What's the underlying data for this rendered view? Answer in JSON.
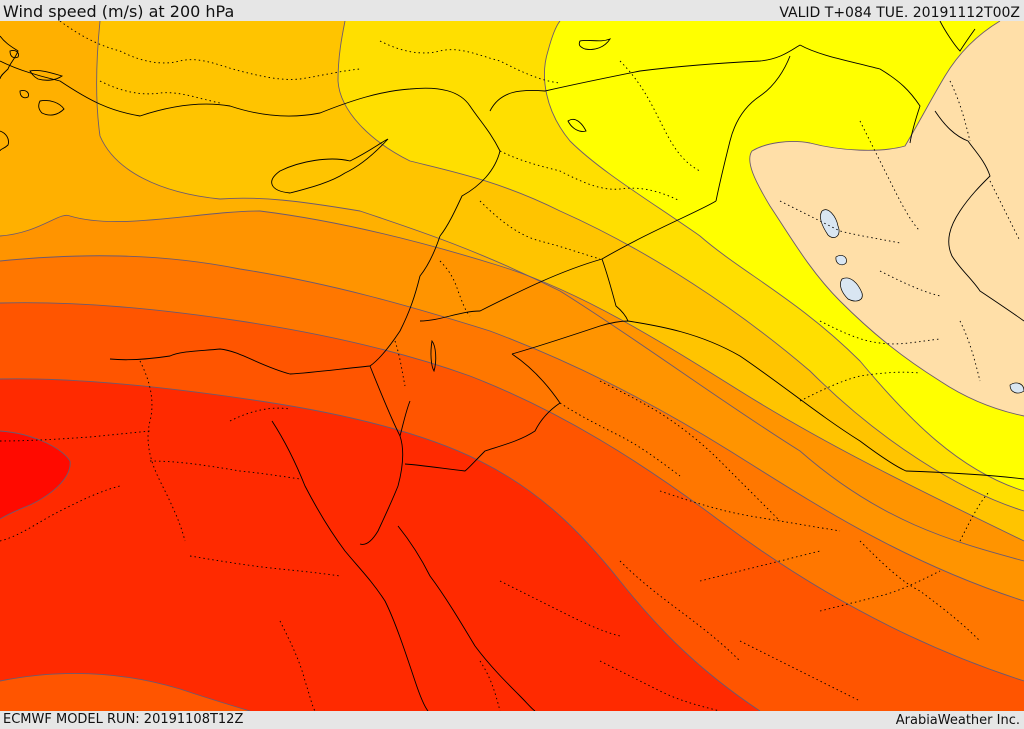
{
  "header": {
    "title": "Wind speed (m/s) at 200 hPa",
    "valid": "VALID T+084 TUE. 20191112T00Z"
  },
  "footer": {
    "model_run": "ECMWF MODEL RUN: 20191108T12Z",
    "credit": "ArabiaWeather Inc."
  },
  "colors": {
    "band_light_orange": "#ffb000",
    "band_gold": "#ffc400",
    "band_yellow_gold": "#ffdf00",
    "band_yellow": "#ffff00",
    "band_orange": "#ff9400",
    "band_dark_orange": "#ff7700",
    "band_red_orange": "#ff5500",
    "band_red": "#ff2a00",
    "band_core": "#ff0a00",
    "calm_area": "#ffdfa8",
    "lakes": "#d9e6f2",
    "contour_line": "#6c5a70",
    "border_line": "#000000"
  }
}
